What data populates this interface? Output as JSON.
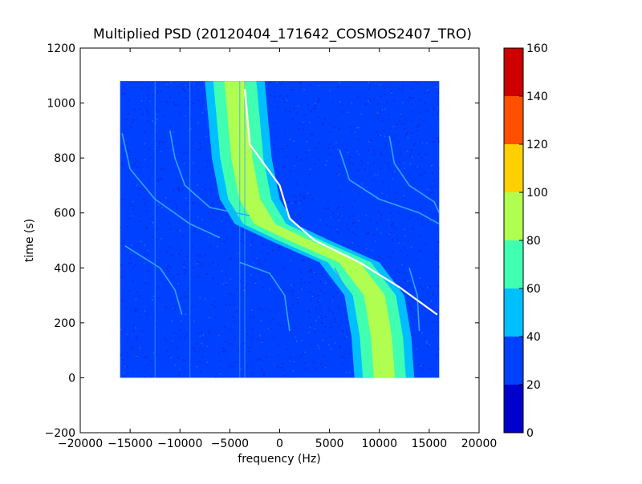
{
  "chart_data": {
    "type": "heatmap",
    "title": "Multiplied PSD (20120404_171642_COSMOS2407_TRO)",
    "xlabel": "frequency (Hz)",
    "ylabel": "time (s)",
    "xlim": [
      -20000,
      20000
    ],
    "ylim": [
      -200,
      1200
    ],
    "x_ticks": [
      -20000,
      -15000,
      -10000,
      -5000,
      0,
      5000,
      10000,
      15000,
      20000
    ],
    "y_ticks": [
      -200,
      0,
      200,
      400,
      600,
      800,
      1000,
      1200
    ],
    "x_tick_labels": [
      "−20000",
      "−15000",
      "−10000",
      "−5000",
      "0",
      "5000",
      "10000",
      "15000",
      "20000"
    ],
    "y_tick_labels": [
      "−200",
      "0",
      "200",
      "400",
      "600",
      "800",
      "1000",
      "1200"
    ],
    "data_extent": {
      "x": [
        -16000,
        16000
      ],
      "y": [
        0,
        1080
      ]
    },
    "background_level": 30,
    "main_band": {
      "description_levels": [
        50,
        70,
        80
      ],
      "center_freq_at_time": [
        [
          0,
          10500
        ],
        [
          150,
          10200
        ],
        [
          300,
          9500
        ],
        [
          420,
          7000
        ],
        [
          500,
          2000
        ],
        [
          560,
          -1500
        ],
        [
          650,
          -3000
        ],
        [
          800,
          -3800
        ],
        [
          1080,
          -4500
        ]
      ],
      "half_width": 3000
    },
    "satellite_trace": {
      "level": 160,
      "points": [
        [
          230,
          15800
        ],
        [
          330,
          12000
        ],
        [
          420,
          8000
        ],
        [
          500,
          3500
        ],
        [
          580,
          1000
        ],
        [
          700,
          0
        ],
        [
          850,
          -3000
        ],
        [
          1050,
          -3500
        ]
      ]
    },
    "colorbar": {
      "min": 0,
      "max": 160,
      "ticks": [
        0,
        20,
        40,
        60,
        80,
        100,
        120,
        140,
        160
      ],
      "tick_labels": [
        "0",
        "20",
        "40",
        "60",
        "80",
        "100",
        "120",
        "140",
        "160"
      ],
      "colors": [
        "#0000cd",
        "#0040ff",
        "#00bfff",
        "#40ffb0",
        "#b0ff50",
        "#ffd000",
        "#ff5000",
        "#cd0000"
      ]
    }
  }
}
